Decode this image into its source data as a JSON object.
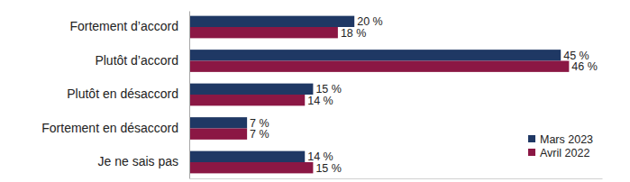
{
  "chart_data": {
    "type": "bar",
    "orientation": "horizontal",
    "categories": [
      "Fortement d’accord",
      "Plutôt d’accord",
      "Plutôt en désaccord",
      "Fortement en désaccord",
      "Je ne sais pas"
    ],
    "series": [
      {
        "name": "Mars 2023",
        "color": "#1f3864",
        "values": [
          20,
          45,
          15,
          7,
          14
        ],
        "value_labels": [
          "20 %",
          "45 %",
          "15 %",
          "7 %",
          "14 %"
        ]
      },
      {
        "name": "Avril 2022",
        "color": "#8b1744",
        "values": [
          18,
          46,
          14,
          7,
          15
        ],
        "value_labels": [
          "18 %",
          "46 %",
          "14 %",
          "7 %",
          "15 %"
        ]
      }
    ],
    "xlim": [
      0,
      50
    ],
    "grid": false,
    "data_labels": true,
    "legend": "lower right",
    "tick_labels": "y"
  }
}
